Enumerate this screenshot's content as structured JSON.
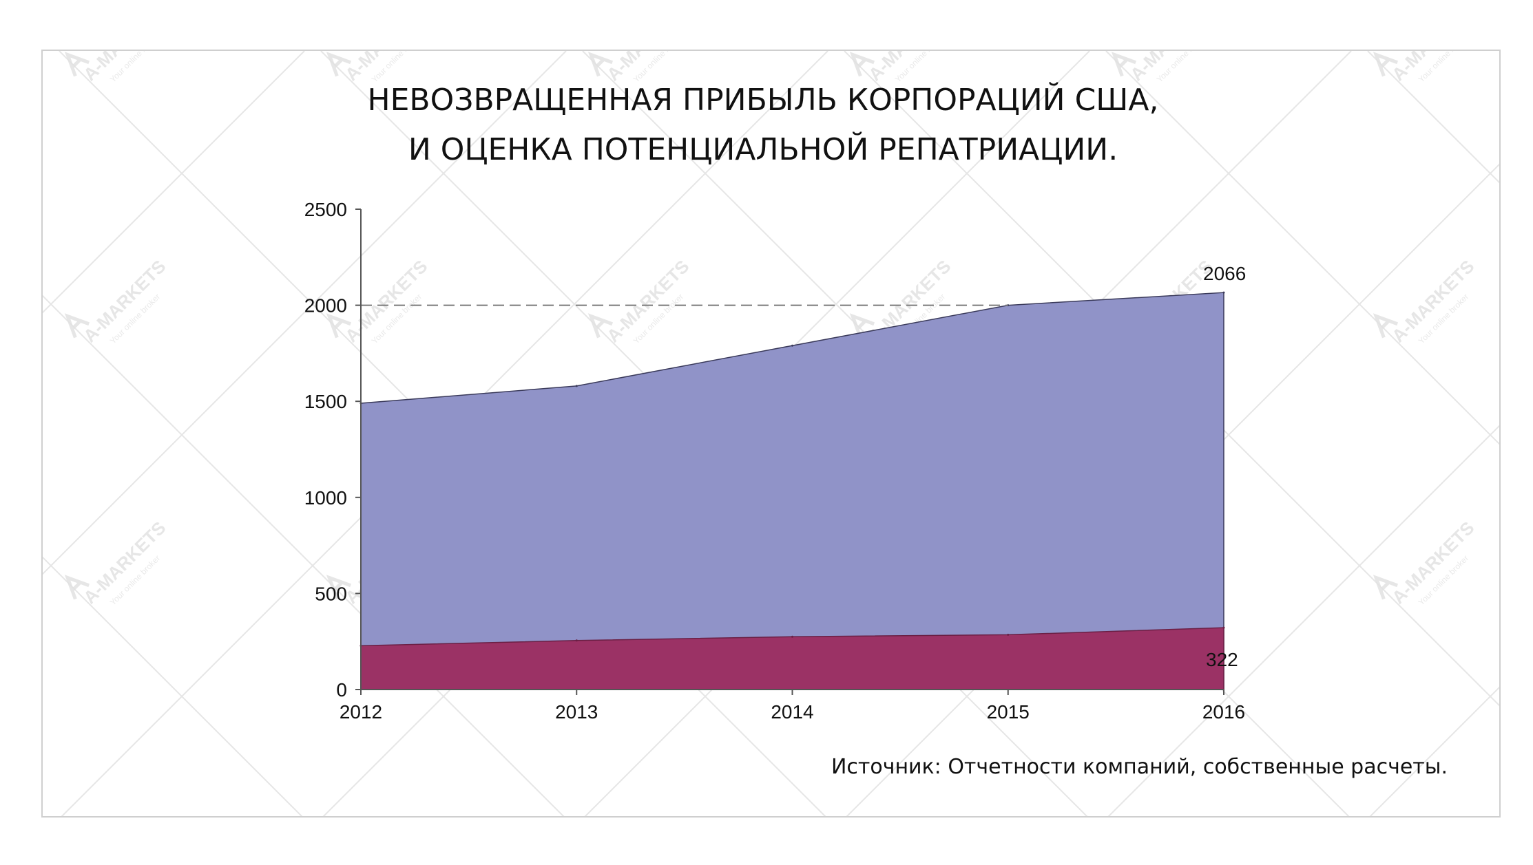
{
  "chart_data": {
    "type": "area",
    "title_lines": [
      "НЕВОЗВРАЩЕННАЯ ПРИБЫЛЬ КОРПОРАЦИЙ США,",
      "И ОЦЕНКА ПОТЕНЦИАЛЬНОЙ РЕПАТРИАЦИИ."
    ],
    "categories": [
      "2012",
      "2013",
      "2014",
      "2015",
      "2016"
    ],
    "series": [
      {
        "values": [
          1490,
          1580,
          1790,
          2000,
          2066
        ],
        "color": "#9093c8"
      },
      {
        "values": [
          228,
          255,
          275,
          285,
          322
        ],
        "color": "#9b3265"
      }
    ],
    "ylim": [
      0,
      2500
    ],
    "yticks": [
      "0",
      "500",
      "1000",
      "1500",
      "2000",
      "2500"
    ],
    "reference_line": 2000,
    "data_labels": [
      {
        "series": 0,
        "index": 4,
        "text": "2066"
      },
      {
        "series": 1,
        "index": 4,
        "text": "322"
      }
    ],
    "grid": false,
    "legend": "none"
  },
  "source_text": "Источник: Отчетности компаний, собственные расчеты.",
  "watermark_text": "A-MARKETS",
  "watermark_subtext": "Your online broker"
}
